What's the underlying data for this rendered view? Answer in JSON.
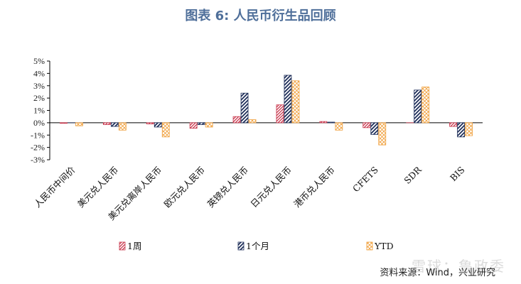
{
  "header": {
    "title": "图表 6:  人民币衍生品回顾"
  },
  "footer": {
    "source": "资料来源：Wind，兴业研究",
    "watermark": "雪球：鲁政委"
  },
  "colors": {
    "week": "#c8344a",
    "month": "#1f2f5a",
    "ytd": "#f0a03c",
    "title": "#4f6f9a"
  },
  "chart_data": {
    "type": "bar",
    "categories": [
      "人民币中间价",
      "美元兑人民币",
      "美元兑离岸人民币",
      "欧元兑人民币",
      "英镑兑人民币",
      "日元兑人民币",
      "港币兑人民币",
      "CFETS",
      "SDR",
      "BIS"
    ],
    "series": [
      {
        "name": "1周",
        "values": [
          -0.05,
          -0.15,
          -0.1,
          -0.45,
          0.5,
          1.45,
          0.1,
          -0.4,
          0.0,
          -0.3
        ]
      },
      {
        "name": "1个月",
        "values": [
          0.0,
          -0.3,
          -0.35,
          -0.15,
          2.4,
          3.85,
          0.05,
          -0.95,
          2.65,
          -1.15
        ]
      },
      {
        "name": "YTD",
        "values": [
          -0.25,
          -0.6,
          -1.15,
          -0.35,
          0.25,
          3.4,
          -0.6,
          -1.8,
          2.9,
          -1.05
        ]
      }
    ],
    "ylim": [
      -3,
      5
    ],
    "yticks": [
      "-3%",
      "-2%",
      "-1%",
      "0%",
      "1%",
      "2%",
      "3%",
      "4%",
      "5%"
    ],
    "legend_position": "bottom"
  }
}
